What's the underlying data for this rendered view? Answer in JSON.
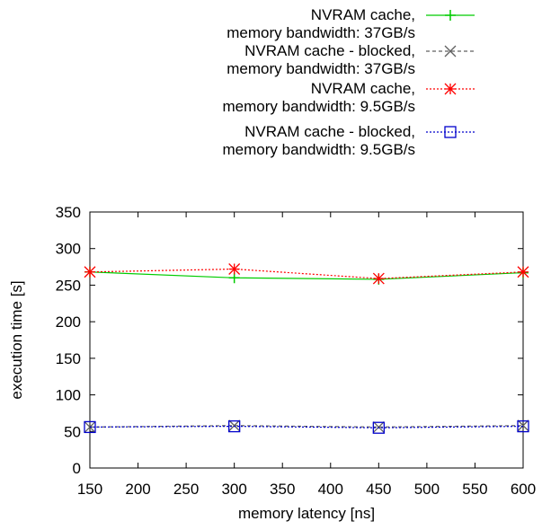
{
  "chart_data": {
    "type": "line",
    "title": "",
    "xlabel": "memory latency [ns]",
    "ylabel": "execution time [s]",
    "xlim": [
      150,
      600
    ],
    "ylim": [
      0,
      350
    ],
    "xticks": [
      150,
      200,
      250,
      300,
      350,
      400,
      450,
      500,
      550,
      600
    ],
    "yticks": [
      0,
      50,
      100,
      150,
      200,
      250,
      300,
      350
    ],
    "grid": false,
    "legend_position": "top-right, outside plot",
    "series": [
      {
        "name_lines": [
          "NVRAM cache,",
          "memory bandwidth: 37GB/s"
        ],
        "color": "#00cc00",
        "dash": "solid",
        "marker": "plus",
        "x": [
          150,
          300,
          450,
          600
        ],
        "y": [
          268,
          260,
          258,
          267
        ]
      },
      {
        "name_lines": [
          "NVRAM cache - blocked,",
          "memory bandwidth: 37GB/s"
        ],
        "color": "#606060",
        "dash": "dashed",
        "marker": "cross",
        "x": [
          150,
          300,
          450,
          600
        ],
        "y": [
          56,
          58,
          56,
          58
        ]
      },
      {
        "name_lines": [
          "NVRAM cache,",
          "memory bandwidth: 9.5GB/s"
        ],
        "color": "#ff0000",
        "dash": "dotted",
        "marker": "star",
        "x": [
          150,
          300,
          450,
          600
        ],
        "y": [
          268,
          272,
          259,
          268
        ]
      },
      {
        "name_lines": [
          "NVRAM cache - blocked,",
          "memory bandwidth: 9.5GB/s"
        ],
        "color": "#0000cc",
        "dash": "dotted",
        "marker": "square",
        "x": [
          150,
          300,
          450,
          600
        ],
        "y": [
          56,
          57,
          55,
          57
        ]
      }
    ]
  }
}
